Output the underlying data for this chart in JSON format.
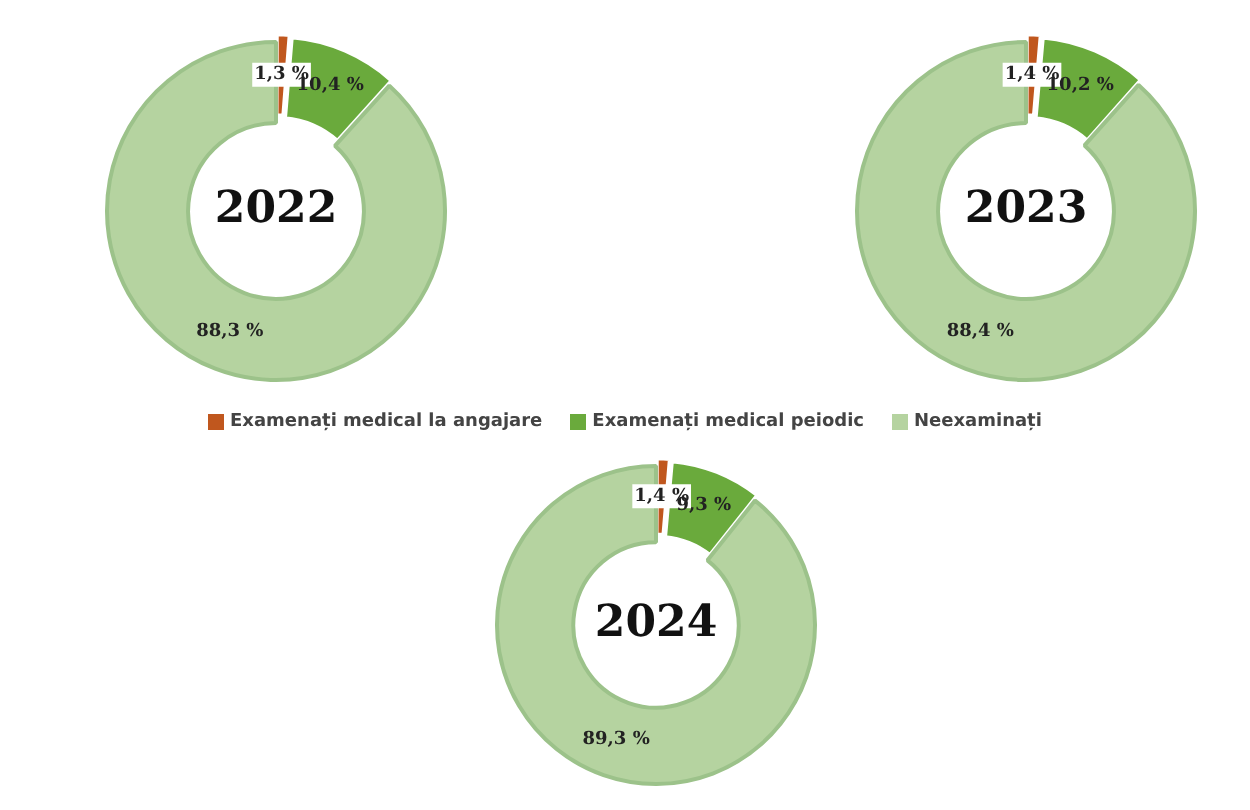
{
  "chart_data": [
    {
      "type": "donut",
      "title": "2022",
      "categories": [
        "Examenați medical la angajare",
        "Examenați medical peiodic",
        "Neexaminați"
      ],
      "values": [
        1.3,
        10.4,
        88.3
      ],
      "colors": [
        "#c0571e",
        "#6aaa3c",
        "#b5d3a0"
      ],
      "value_labels": [
        "1,3 %",
        "10,4 %",
        "88,3 %"
      ],
      "legend": "bottom"
    },
    {
      "type": "donut",
      "title": "2023",
      "categories": [
        null,
        null,
        null
      ],
      "values": [
        1.4,
        10.2,
        88.4
      ],
      "colors": [
        "#c0571e",
        "#6aaa3c",
        "#b5d3a0"
      ],
      "value_labels": [
        "1,4 %",
        "10,2 %",
        "88,4 %"
      ]
    },
    {
      "type": "donut",
      "title": "2024",
      "categories": [
        null,
        null,
        null
      ],
      "values": [
        1.4,
        9.3,
        89.3
      ],
      "colors": [
        "#c0571e",
        "#6aaa3c",
        "#b5d3a0"
      ],
      "value_labels": [
        "1,4 %",
        "9,3 %",
        "89,3 %"
      ]
    }
  ]
}
